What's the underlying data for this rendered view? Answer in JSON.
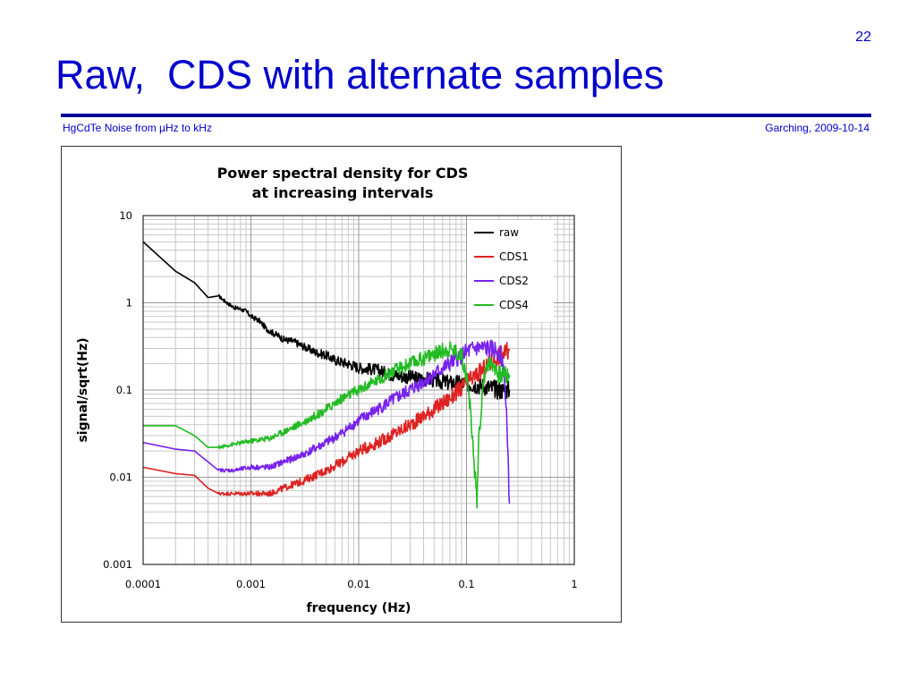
{
  "slide": {
    "page_number": "22",
    "title": "Raw,  CDS with alternate samples",
    "footer_left": "HgCdTe Noise from µHz to kHz",
    "footer_right": "Garching, 2009-10-14"
  },
  "chart_data": {
    "type": "line",
    "title_lines": [
      "Power spectral density for CDS",
      "at increasing intervals"
    ],
    "xlabel": "frequency (Hz)",
    "ylabel": "signal/sqrt(Hz)",
    "x_scale": "log",
    "y_scale": "log",
    "xlim": [
      0.0001,
      1
    ],
    "ylim": [
      0.001,
      10
    ],
    "x_ticks": [
      0.0001,
      0.001,
      0.01,
      0.1,
      1
    ],
    "x_tick_labels": [
      "0.0001",
      "0.001",
      "0.01",
      "0.1",
      "1"
    ],
    "y_ticks": [
      0.001,
      0.01,
      0.1,
      1,
      10
    ],
    "y_tick_labels": [
      "0.001",
      "0.01",
      "0.1",
      "1",
      "10"
    ],
    "grid": true,
    "legend_position": "top-right",
    "series": [
      {
        "name": "raw",
        "color": "#000000",
        "x": [
          0.0001,
          0.0002,
          0.0003,
          0.0004,
          0.0005,
          0.0006,
          0.0007,
          0.0008,
          0.0009,
          0.001,
          0.0012,
          0.0014,
          0.0016,
          0.0018,
          0.002,
          0.0025,
          0.003,
          0.004,
          0.005,
          0.006,
          0.008,
          0.01,
          0.015,
          0.02,
          0.03,
          0.05,
          0.07,
          0.1,
          0.15,
          0.2,
          0.25
        ],
        "y": [
          5.0,
          2.3,
          1.7,
          1.15,
          1.2,
          1.0,
          0.88,
          0.85,
          0.8,
          0.7,
          0.62,
          0.5,
          0.45,
          0.42,
          0.38,
          0.36,
          0.32,
          0.27,
          0.25,
          0.22,
          0.2,
          0.18,
          0.17,
          0.15,
          0.14,
          0.13,
          0.12,
          0.12,
          0.11,
          0.1,
          0.1
        ]
      },
      {
        "name": "CDS1",
        "color": "#dd2222",
        "x": [
          0.0001,
          0.0002,
          0.0003,
          0.0004,
          0.0005,
          0.0007,
          0.001,
          0.0015,
          0.002,
          0.003,
          0.005,
          0.007,
          0.01,
          0.015,
          0.02,
          0.03,
          0.05,
          0.07,
          0.1,
          0.15,
          0.2,
          0.25
        ],
        "y": [
          0.013,
          0.011,
          0.0105,
          0.0075,
          0.0065,
          0.0065,
          0.0065,
          0.0065,
          0.0075,
          0.009,
          0.012,
          0.015,
          0.02,
          0.025,
          0.03,
          0.04,
          0.06,
          0.08,
          0.12,
          0.18,
          0.25,
          0.28
        ]
      },
      {
        "name": "CDS2",
        "color": "#7722ee",
        "x": [
          0.0001,
          0.0002,
          0.0003,
          0.0004,
          0.0005,
          0.0007,
          0.001,
          0.0015,
          0.002,
          0.003,
          0.005,
          0.007,
          0.01,
          0.015,
          0.02,
          0.03,
          0.05,
          0.07,
          0.1,
          0.12,
          0.15,
          0.2,
          0.22,
          0.24,
          0.25
        ],
        "y": [
          0.025,
          0.021,
          0.02,
          0.015,
          0.012,
          0.012,
          0.013,
          0.013,
          0.015,
          0.018,
          0.025,
          0.032,
          0.045,
          0.06,
          0.075,
          0.1,
          0.15,
          0.2,
          0.27,
          0.3,
          0.3,
          0.28,
          0.2,
          0.03,
          0.005
        ]
      },
      {
        "name": "CDS4",
        "color": "#22bb22",
        "x": [
          0.0001,
          0.0002,
          0.0003,
          0.0004,
          0.0005,
          0.0007,
          0.001,
          0.0015,
          0.002,
          0.003,
          0.005,
          0.007,
          0.01,
          0.015,
          0.02,
          0.03,
          0.05,
          0.07,
          0.09,
          0.1,
          0.11,
          0.12,
          0.125,
          0.13,
          0.15,
          0.18,
          0.2,
          0.25
        ],
        "y": [
          0.039,
          0.039,
          0.03,
          0.022,
          0.022,
          0.024,
          0.026,
          0.028,
          0.033,
          0.042,
          0.06,
          0.08,
          0.1,
          0.13,
          0.16,
          0.2,
          0.26,
          0.3,
          0.25,
          0.15,
          0.05,
          0.01,
          0.0055,
          0.03,
          0.2,
          0.2,
          0.15,
          0.15
        ]
      }
    ]
  }
}
